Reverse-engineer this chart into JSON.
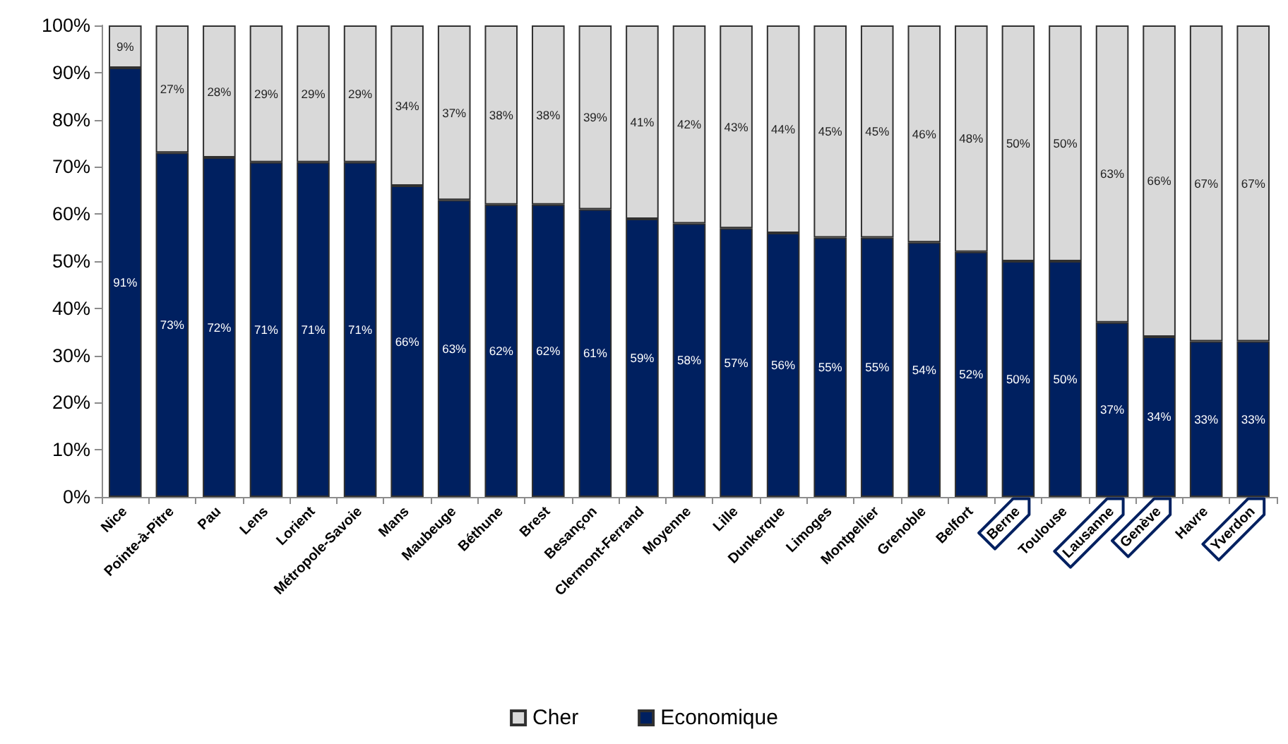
{
  "chart_data": {
    "type": "bar",
    "stacked": true,
    "legend": "bottom",
    "categories": [
      "Nice",
      "Pointe-à-Pitre",
      "Pau",
      "Lens",
      "Lorient",
      "Métropole-Savoie",
      "Mans",
      "Maubeuge",
      "Béthune",
      "Brest",
      "Besançon",
      "Clermont-Ferrand",
      "Moyenne",
      "Lille",
      "Dunkerque",
      "Limoges",
      "Montpellier",
      "Grenoble",
      "Belfort",
      "Berne",
      "Toulouse",
      "Lausanne",
      "Genève",
      "Havre",
      "Yverdon"
    ],
    "series": [
      {
        "name": "Economique",
        "color": "#002060",
        "values": [
          91,
          73,
          72,
          71,
          71,
          71,
          66,
          63,
          62,
          62,
          61,
          59,
          58,
          57,
          56,
          55,
          55,
          54,
          52,
          50,
          50,
          37,
          34,
          33,
          33
        ],
        "value_labels": [
          "91%",
          "73%",
          "72%",
          "71%",
          "71%",
          "71%",
          "66%",
          "63%",
          "62%",
          "62%",
          "61%",
          "59%",
          "58%",
          "57%",
          "56%",
          "55%",
          "55%",
          "54%",
          "52%",
          "50%",
          "50%",
          "37%",
          "34%",
          "33%",
          "33%"
        ]
      },
      {
        "name": "Cher",
        "color": "#d9d9d9",
        "values": [
          9,
          27,
          28,
          29,
          29,
          29,
          34,
          37,
          38,
          38,
          39,
          41,
          42,
          43,
          44,
          45,
          45,
          46,
          48,
          50,
          50,
          63,
          66,
          67,
          67
        ],
        "value_labels": [
          "9%",
          "27%",
          "28%",
          "29%",
          "29%",
          "29%",
          "34%",
          "37%",
          "38%",
          "38%",
          "39%",
          "41%",
          "42%",
          "43%",
          "44%",
          "45%",
          "45%",
          "46%",
          "48%",
          "50%",
          "50%",
          "63%",
          "66%",
          "67%",
          "67%"
        ]
      }
    ],
    "ylim": [
      0,
      100
    ],
    "yticks": [
      {
        "value": 0,
        "label": "0%"
      },
      {
        "value": 10,
        "label": "10%"
      },
      {
        "value": 20,
        "label": "20%"
      },
      {
        "value": 30,
        "label": "30%"
      },
      {
        "value": 40,
        "label": "40%"
      },
      {
        "value": 50,
        "label": "50%"
      },
      {
        "value": 60,
        "label": "60%"
      },
      {
        "value": 70,
        "label": "70%"
      },
      {
        "value": 80,
        "label": "80%"
      },
      {
        "value": 90,
        "label": "90%"
      },
      {
        "value": 100,
        "label": "100%"
      }
    ]
  }
}
